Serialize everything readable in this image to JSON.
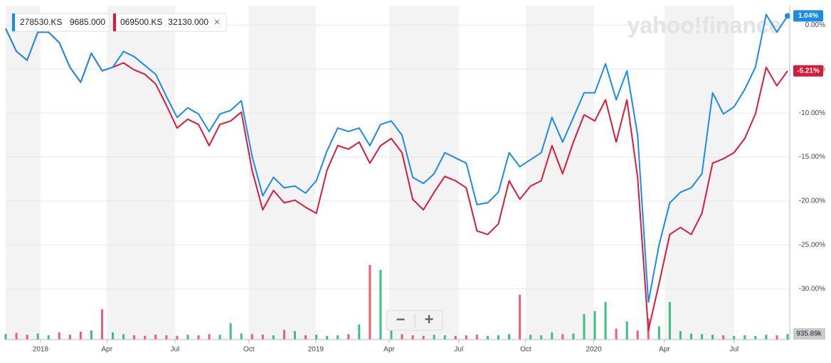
{
  "chart_data": {
    "type": "line",
    "legend": [
      {
        "name": "278530.KS",
        "quote": "9685.000",
        "color": "#1a8be8"
      },
      {
        "name": "069500.KS",
        "quote": "32130.000",
        "color": "#d81b3c",
        "close": "×"
      }
    ],
    "watermark": "yahoo!finance",
    "controls": [
      "−",
      "+"
    ],
    "xlim": [
      0,
      146
    ],
    "xticks": [
      {
        "value": 6.5,
        "label": "2018"
      },
      {
        "value": 18.9,
        "label": "Apr"
      },
      {
        "value": 31.6,
        "label": "Jul"
      },
      {
        "value": 45.4,
        "label": "Oct"
      },
      {
        "value": 57.9,
        "label": "2019"
      },
      {
        "value": 71.6,
        "label": "Apr"
      },
      {
        "value": 84.6,
        "label": "Jul"
      },
      {
        "value": 97.1,
        "label": "Oct"
      },
      {
        "value": 109.8,
        "label": "2020"
      },
      {
        "value": 123.0,
        "label": "Apr"
      },
      {
        "value": 136.0,
        "label": "Jul"
      }
    ],
    "ylim": [
      -35.5,
      2.2
    ],
    "yticks": [
      {
        "value": 0,
        "label": "0.00%"
      },
      {
        "value": -5,
        "label": "-5.00%"
      },
      {
        "value": -10,
        "label": "-10.00%"
      },
      {
        "value": -15,
        "label": "-15.00%"
      },
      {
        "value": -20,
        "label": "-20.00%"
      },
      {
        "value": -25,
        "label": "-25.00%"
      },
      {
        "value": -30,
        "label": "-30.00%"
      }
    ],
    "grid": true,
    "x": [
      0,
      2,
      4,
      6,
      8,
      10,
      12,
      14,
      16,
      18,
      20,
      22,
      24,
      26,
      28,
      30,
      32,
      34,
      36,
      38,
      40,
      42,
      44,
      46,
      48,
      50,
      52,
      54,
      56,
      58,
      60,
      62,
      64,
      66,
      68,
      70,
      72,
      74,
      76,
      78,
      80,
      82,
      84,
      86,
      88,
      90,
      92,
      94,
      96,
      98,
      100,
      102,
      104,
      106,
      108,
      110,
      112,
      114,
      116,
      118,
      120,
      122,
      124,
      126,
      128,
      130,
      132,
      134,
      136,
      138,
      140,
      142,
      144,
      146
    ],
    "series": [
      {
        "name": "278530.KS",
        "color": "#1a8be8",
        "values": [
          -0.4,
          -3.0,
          -4.0,
          -0.8,
          -0.8,
          -2.0,
          -4.8,
          -6.5,
          -3.2,
          -5.2,
          -4.8,
          -3.0,
          -3.6,
          -4.6,
          -5.6,
          -8.1,
          -10.5,
          -9.4,
          -10.1,
          -12.1,
          -10.1,
          -9.7,
          -8.6,
          -14.9,
          -19.4,
          -17.3,
          -18.5,
          -18.3,
          -19.1,
          -17.7,
          -14.3,
          -11.7,
          -12.1,
          -11.7,
          -13.7,
          -11.3,
          -10.9,
          -12.5,
          -17.3,
          -18.0,
          -16.9,
          -14.5,
          -15.1,
          -15.7,
          -20.4,
          -20.2,
          -19.0,
          -14.5,
          -16.1,
          -15.3,
          -14.5,
          -10.5,
          -13.3,
          -10.5,
          -7.7,
          -7.7,
          -4.4,
          -8.5,
          -5.2,
          -12.5,
          -31.5,
          -25.0,
          -20.2,
          -19.0,
          -18.5,
          -16.9,
          -7.7,
          -10.1,
          -9.3,
          -7.3,
          -4.8,
          1.2,
          -0.8,
          1.04
        ],
        "value_labels": [
          null,
          null,
          null,
          null,
          null,
          null,
          null,
          null,
          null,
          null,
          null,
          null,
          null,
          null,
          null,
          null,
          null,
          null,
          null,
          null,
          null,
          null,
          null,
          null,
          null,
          null,
          null,
          null,
          null,
          null,
          null,
          null,
          null,
          null,
          null,
          null,
          null,
          null,
          null,
          null,
          null,
          null,
          null,
          null,
          null,
          null,
          null,
          null,
          null,
          null,
          null,
          null,
          null,
          null,
          null,
          null,
          null,
          null,
          null,
          null,
          null,
          null,
          null,
          null,
          null,
          null,
          null,
          null,
          null,
          null,
          null,
          null,
          null,
          "1.04%"
        ]
      },
      {
        "name": "069500.KS",
        "color": "#d81b3c",
        "values": [
          -0.4,
          -3.0,
          -4.0,
          -0.8,
          -0.8,
          -2.0,
          -4.8,
          -6.5,
          -3.2,
          -5.2,
          -4.8,
          -4.3,
          -5.1,
          -5.6,
          -6.7,
          -9.1,
          -11.7,
          -10.7,
          -11.3,
          -13.7,
          -11.3,
          -10.9,
          -9.9,
          -16.5,
          -21.0,
          -18.8,
          -20.2,
          -19.9,
          -20.7,
          -21.4,
          -16.5,
          -13.7,
          -14.1,
          -13.3,
          -15.7,
          -13.7,
          -12.9,
          -14.5,
          -19.8,
          -21.0,
          -19.0,
          -17.2,
          -17.7,
          -18.5,
          -23.4,
          -23.8,
          -22.6,
          -17.7,
          -19.8,
          -18.3,
          -17.7,
          -13.7,
          -16.9,
          -13.3,
          -10.2,
          -10.9,
          -8.5,
          -13.3,
          -8.5,
          -17.3,
          -34.7,
          -29.4,
          -23.8,
          -23.0,
          -23.8,
          -21.4,
          -15.7,
          -15.2,
          -14.5,
          -12.9,
          -10.1,
          -4.8,
          -6.9,
          -5.21
        ],
        "value_labels": [
          null,
          null,
          null,
          null,
          null,
          null,
          null,
          null,
          null,
          null,
          null,
          null,
          null,
          null,
          null,
          null,
          null,
          null,
          null,
          null,
          null,
          null,
          null,
          null,
          null,
          null,
          null,
          null,
          null,
          null,
          null,
          null,
          null,
          null,
          null,
          null,
          null,
          null,
          null,
          null,
          null,
          null,
          null,
          null,
          null,
          null,
          null,
          null,
          null,
          null,
          null,
          null,
          null,
          null,
          null,
          null,
          null,
          null,
          null,
          null,
          null,
          null,
          null,
          null,
          null,
          null,
          null,
          null,
          null,
          null,
          null,
          null,
          null,
          "-5.21%"
        ]
      }
    ],
    "volume": {
      "values": [
        900,
        1100,
        800,
        1000,
        700,
        1200,
        800,
        1300,
        1500,
        5000,
        1200,
        900,
        700,
        600,
        800,
        700,
        600,
        800,
        700,
        900,
        800,
        2700,
        1000,
        900,
        800,
        700,
        1600,
        1400,
        700,
        800,
        600,
        700,
        900,
        2500,
        12300,
        11500,
        2000,
        900,
        700,
        600,
        800,
        700,
        600,
        700,
        800,
        600,
        700,
        900,
        7400,
        800,
        700,
        1200,
        900,
        1000,
        4200,
        4700,
        6200,
        1800,
        3000,
        1500,
        3500,
        2200,
        6200,
        1400,
        1000,
        900,
        800,
        700,
        600,
        700,
        600,
        800,
        700,
        900
      ],
      "vlim": [
        0,
        15000
      ],
      "up_color": "#3cbf80",
      "down_color": "#f25c70",
      "current": {
        "value": 935.89,
        "label": "935.89k"
      }
    }
  }
}
